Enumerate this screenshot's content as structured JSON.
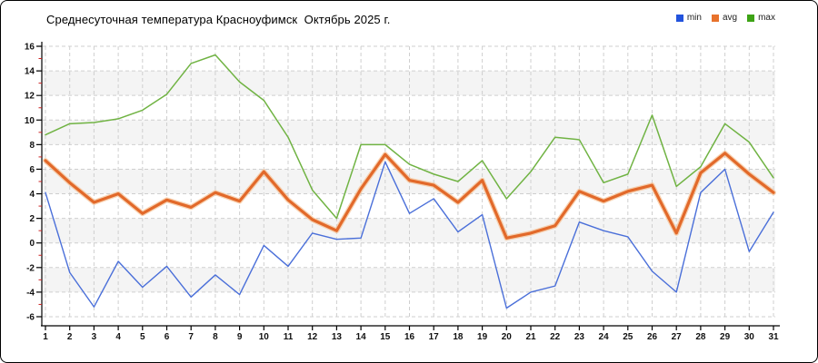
{
  "header": {
    "title": "Среднесуточная температура Красноуфимск  Октябрь 2025 г."
  },
  "legend": {
    "position": "top-right",
    "items": [
      {
        "label": "min",
        "color": "#2253dd"
      },
      {
        "label": "avg",
        "color": "#e8722c"
      },
      {
        "label": "max",
        "color": "#3da315"
      }
    ]
  },
  "colors": {
    "axis": "#000000",
    "grid": "#cfcfcf",
    "band": "#f4f4f4",
    "minor_tick": "#cc2222",
    "tick_label": "#111111"
  },
  "chart_data": {
    "type": "line",
    "title": "Среднесуточная температура Красноуфимск  Октябрь 2025 г.",
    "xlabel": "",
    "ylabel": "",
    "x": [
      1,
      2,
      3,
      4,
      5,
      6,
      7,
      8,
      9,
      10,
      11,
      12,
      13,
      14,
      15,
      16,
      17,
      18,
      19,
      20,
      21,
      22,
      23,
      24,
      25,
      26,
      27,
      28,
      29,
      30,
      31
    ],
    "ylim": [
      -6,
      16
    ],
    "y_tick_step": 2,
    "grid": true,
    "legend_position": "top-right",
    "series": [
      {
        "name": "min",
        "color": "#4a6fd9",
        "line_width": 1.4,
        "values": [
          4.1,
          -2.4,
          -5.2,
          -1.5,
          -3.6,
          -1.9,
          -4.4,
          -2.6,
          -4.2,
          -0.2,
          -1.9,
          0.8,
          0.3,
          0.4,
          6.6,
          2.4,
          3.6,
          0.9,
          2.3,
          -5.3,
          -4.0,
          -3.5,
          1.7,
          1.0,
          0.5,
          -2.3,
          -4.0,
          4.1,
          6.0,
          -0.7,
          2.5
        ]
      },
      {
        "name": "avg",
        "color": "#e2692a",
        "line_width": 3.2,
        "values": [
          6.7,
          4.9,
          3.3,
          4.0,
          2.4,
          3.5,
          2.9,
          4.1,
          3.4,
          5.8,
          3.5,
          1.9,
          1.0,
          4.4,
          7.2,
          5.1,
          4.7,
          3.3,
          5.1,
          0.4,
          0.8,
          1.4,
          4.2,
          3.4,
          4.2,
          4.7,
          0.8,
          5.7,
          7.3,
          5.6,
          4.1
        ]
      },
      {
        "name": "max",
        "color": "#70b343",
        "line_width": 1.5,
        "values": [
          8.8,
          9.7,
          9.8,
          10.1,
          10.8,
          12.1,
          14.6,
          15.3,
          13.1,
          11.6,
          8.6,
          4.3,
          2.0,
          8.0,
          8.0,
          6.4,
          5.6,
          5.0,
          6.7,
          3.6,
          5.8,
          8.6,
          8.4,
          4.9,
          5.6,
          10.4,
          4.6,
          6.2,
          9.7,
          8.2,
          5.3
        ]
      }
    ]
  }
}
